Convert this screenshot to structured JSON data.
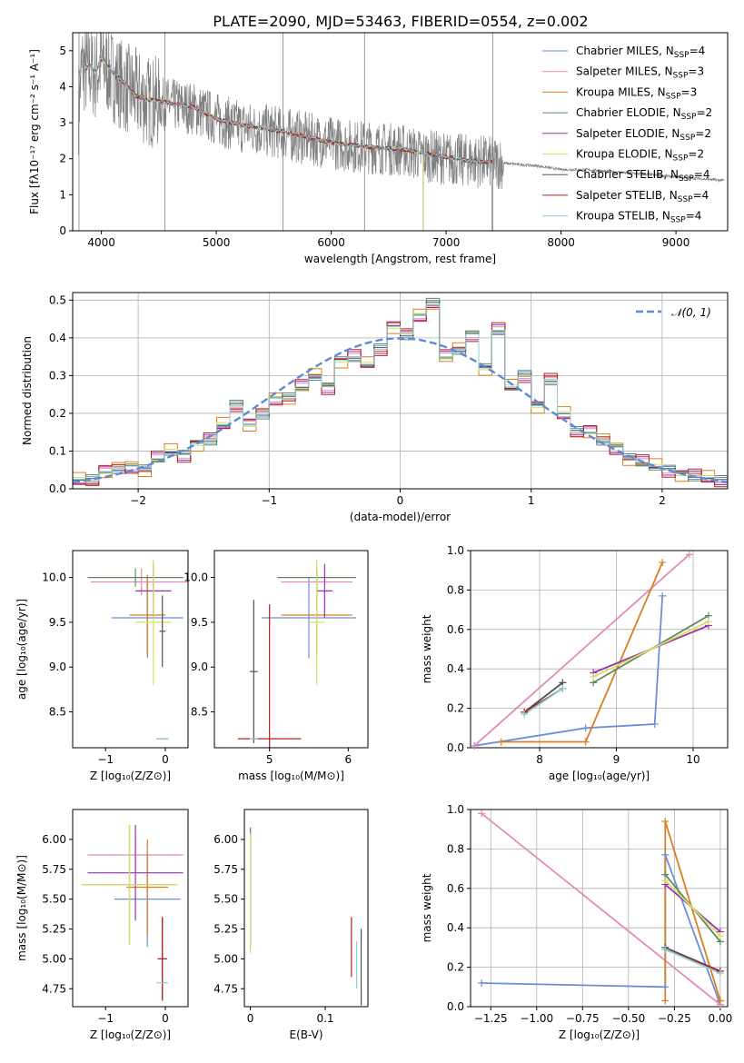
{
  "title": "PLATE=2090, MJD=53463, FIBERID=0554, z=0.002",
  "colors": {
    "gray": "#808080",
    "blue": "#6a8fd8",
    "pink": "#e58ab8",
    "orange": "#d9801e",
    "green": "#5e8a5e",
    "purple": "#9932b0",
    "yellow": "#d8e060",
    "dkgray": "#505050",
    "red": "#b52020",
    "cyan": "#8ccfd8",
    "normal": "#5b8bd4"
  },
  "models": [
    {
      "label": "Chabrier MILES, N",
      "sub": "SSP",
      "tail": "=4",
      "color": "#6a8fd8"
    },
    {
      "label": "Salpeter MILES, N",
      "sub": "SSP",
      "tail": "=3",
      "color": "#e58ab8"
    },
    {
      "label": "Kroupa MILES, N",
      "sub": "SSP",
      "tail": "=3",
      "color": "#d9801e"
    },
    {
      "label": "Chabrier ELODIE, N",
      "sub": "SSP",
      "tail": "=2",
      "color": "#5e8a5e"
    },
    {
      "label": "Salpeter ELODIE, N",
      "sub": "SSP",
      "tail": "=2",
      "color": "#9932b0"
    },
    {
      "label": "Kroupa ELODIE, N",
      "sub": "SSP",
      "tail": "=2",
      "color": "#d8e060"
    },
    {
      "label": "Chabrier STELIB, N",
      "sub": "SSP",
      "tail": "=4",
      "color": "#505050"
    },
    {
      "label": "Salpeter STELIB, N",
      "sub": "SSP",
      "tail": "=4",
      "color": "#b52020"
    },
    {
      "label": "Kroupa STELIB, N",
      "sub": "SSP",
      "tail": "=4",
      "color": "#8ccfd8"
    }
  ],
  "chart_data": [
    {
      "id": "spectrum",
      "type": "line",
      "xlabel": "wavelength [Angstrom, rest frame]",
      "ylabel": "Flux [fλ10⁻¹⁷ erg cm⁻² s⁻¹ A⁻¹]",
      "xlim": [
        3750,
        9450
      ],
      "ylim": [
        0,
        5.5
      ],
      "xticks": [
        4000,
        5000,
        6000,
        7000,
        8000,
        9000
      ],
      "yticks": [
        0,
        1,
        2,
        3,
        4,
        5
      ],
      "data_x": [
        3800,
        3830,
        3870,
        3900,
        3950,
        4000,
        4100,
        4200,
        4300,
        4400,
        4600,
        4800,
        5000,
        5200,
        5400,
        5600,
        5800,
        6000,
        6200,
        6400,
        6600,
        6800,
        7000,
        7200,
        7400,
        7600,
        7800,
        8000,
        8200,
        8400,
        8600,
        8800,
        9000,
        9200,
        9400
      ],
      "data_y": [
        3.4,
        4.6,
        4.4,
        4.5,
        4.3,
        4.7,
        4.3,
        4.0,
        3.8,
        3.6,
        3.5,
        3.4,
        3.1,
        2.9,
        2.8,
        2.7,
        2.55,
        2.45,
        2.35,
        2.3,
        2.25,
        2.1,
        2.0,
        1.95,
        1.9,
        1.85,
        1.8,
        1.7,
        1.7,
        1.65,
        1.6,
        1.55,
        1.5,
        1.45,
        1.4
      ],
      "model_x": [
        3800,
        3830,
        3870,
        3900,
        3950,
        4000,
        4100,
        4200,
        4300,
        4400,
        4600,
        4800,
        5000,
        5200,
        5400,
        5600,
        5800,
        6000,
        6200,
        6400,
        6600,
        6800,
        7000,
        7200,
        7400
      ],
      "model_y": [
        3.9,
        4.7,
        4.5,
        4.6,
        4.4,
        4.8,
        4.4,
        4.1,
        3.75,
        3.65,
        3.55,
        3.45,
        3.1,
        2.95,
        2.85,
        2.75,
        2.6,
        2.45,
        2.38,
        2.3,
        2.27,
        2.15,
        2.05,
        1.95,
        1.9
      ],
      "series_end_wavelengths": [
        7400,
        7400,
        7400,
        7400,
        6800,
        6800,
        7400,
        7400,
        7400
      ]
    },
    {
      "id": "residuals",
      "type": "histogram",
      "xlabel": "(data-model)/error",
      "ylabel": "Normed distribution",
      "xlim": [
        -2.5,
        2.5
      ],
      "ylim": [
        0,
        0.52
      ],
      "xticks": [
        -2,
        -1,
        0,
        1,
        2
      ],
      "yticks": [
        0.0,
        0.1,
        0.2,
        0.3,
        0.4,
        0.5
      ],
      "legend": "𝒩(0, 1)",
      "bin_edges": [
        -2.5,
        -2.4,
        -2.3,
        -2.2,
        -2.1,
        -2.0,
        -1.9,
        -1.8,
        -1.7,
        -1.6,
        -1.5,
        -1.4,
        -1.3,
        -1.2,
        -1.1,
        -1.0,
        -0.9,
        -0.8,
        -0.7,
        -0.6,
        -0.5,
        -0.4,
        -0.3,
        -0.2,
        -0.1,
        0.0,
        0.1,
        0.2,
        0.3,
        0.4,
        0.5,
        0.6,
        0.7,
        0.8,
        0.9,
        1.0,
        1.1,
        1.2,
        1.3,
        1.4,
        1.5,
        1.6,
        1.7,
        1.8,
        1.9,
        2.0,
        2.1,
        2.2,
        2.3,
        2.4,
        2.5
      ],
      "heights": [
        0.025,
        0.022,
        0.045,
        0.055,
        0.06,
        0.05,
        0.08,
        0.1,
        0.09,
        0.12,
        0.13,
        0.17,
        0.22,
        0.17,
        0.2,
        0.24,
        0.24,
        0.27,
        0.3,
        0.27,
        0.34,
        0.35,
        0.33,
        0.37,
        0.43,
        0.41,
        0.46,
        0.49,
        0.35,
        0.37,
        0.41,
        0.32,
        0.42,
        0.27,
        0.3,
        0.22,
        0.29,
        0.2,
        0.15,
        0.15,
        0.13,
        0.11,
        0.08,
        0.07,
        0.06,
        0.05,
        0.04,
        0.035,
        0.03,
        0.02
      ],
      "series_offsets": [
        0.01,
        -0.01,
        0.02,
        -0.015,
        0.015,
        -0.005,
        0.005,
        -0.02,
        0.0
      ],
      "normal_mu": 0,
      "normal_sigma": 1
    },
    {
      "id": "z_age",
      "type": "errorbar",
      "xlabel": "Z [log₁₀(Z/Z⊙)]",
      "ylabel": "age  [log₁₀(age/yr)]",
      "xlim": [
        -1.55,
        0.38
      ],
      "ylim": [
        8.1,
        10.3
      ],
      "xticks": [
        -1,
        0
      ],
      "yticks": [
        8.5,
        9.0,
        9.5,
        10.0
      ],
      "points": [
        {
          "series": 0,
          "x": -0.3,
          "y": 9.55,
          "xerr": 0.6,
          "yerr": 0.45
        },
        {
          "series": 1,
          "x": -0.4,
          "y": 9.95,
          "xerr": 0.85,
          "yerr": 0.15
        },
        {
          "series": 2,
          "x": -0.3,
          "y": 9.58,
          "xerr": 0.3,
          "yerr": 0.45
        },
        {
          "series": 3,
          "x": -0.5,
          "y": 10.0,
          "xerr": 0.8,
          "yerr": 0.1
        },
        {
          "series": 4,
          "x": -0.2,
          "y": 9.85,
          "xerr": 0.3,
          "yerr": 0.3
        },
        {
          "series": 5,
          "x": -0.2,
          "y": 9.5,
          "xerr": 0.3,
          "yerr": 0.7
        },
        {
          "series": 6,
          "x": -0.05,
          "y": 9.4,
          "xerr": 0.05,
          "yerr": 0.4
        },
        {
          "series": 7,
          "x": -0.05,
          "y": 8.2,
          "xerr": 0.1,
          "yerr": 0.0
        },
        {
          "series": 8,
          "x": -0.05,
          "y": 8.2,
          "xerr": 0.1,
          "yerr": 0.0
        }
      ]
    },
    {
      "id": "mass_age",
      "type": "errorbar",
      "xlabel": "mass [log₁₀(M/M⊙)]",
      "ylabel": "",
      "xlim": [
        4.3,
        6.25
      ],
      "ylim": [
        8.1,
        10.3
      ],
      "xticks": [
        4,
        5,
        6
      ],
      "yticks": [
        8.5,
        9.0,
        9.5,
        10.0
      ],
      "points": [
        {
          "series": 0,
          "x": 5.5,
          "y": 9.55,
          "xerr": 0.6,
          "yerr": 0.45
        },
        {
          "series": 1,
          "x": 5.6,
          "y": 9.95,
          "xerr": 0.45,
          "yerr": 0.15
        },
        {
          "series": 2,
          "x": 5.6,
          "y": 9.58,
          "xerr": 0.45,
          "yerr": 0.45
        },
        {
          "series": 3,
          "x": 5.6,
          "y": 10.0,
          "xerr": 0.5,
          "yerr": 0.1
        },
        {
          "series": 4,
          "x": 5.7,
          "y": 9.85,
          "xerr": 0.1,
          "yerr": 0.3
        },
        {
          "series": 5,
          "x": 5.6,
          "y": 9.5,
          "xerr": 0.1,
          "yerr": 0.7
        },
        {
          "series": 6,
          "x": 4.8,
          "y": 8.95,
          "xerr": 0.05,
          "yerr": 0.8
        },
        {
          "series": 7,
          "x": 5.0,
          "y": 8.2,
          "xerr": 0.4,
          "yerr": 1.5
        },
        {
          "series": 8,
          "x": 4.8,
          "y": 8.2,
          "xerr": 0.05,
          "yerr": 0.0
        }
      ]
    },
    {
      "id": "age_weight",
      "type": "line",
      "xlabel": "age  [log₁₀(age/yr)]",
      "ylabel": "mass weight",
      "xlim": [
        7.1,
        10.45
      ],
      "ylim": [
        0,
        1.0
      ],
      "xticks": [
        8,
        9,
        10
      ],
      "yticks": [
        0.0,
        0.2,
        0.4,
        0.6,
        0.8,
        1.0
      ],
      "series": [
        {
          "series": 0,
          "x": [
            7.15,
            8.6,
            9.5,
            9.6
          ],
          "y": [
            0.01,
            0.1,
            0.12,
            0.77
          ]
        },
        {
          "series": 1,
          "x": [
            7.15,
            9.95
          ],
          "y": [
            0.01,
            0.98
          ]
        },
        {
          "series": 2,
          "x": [
            7.5,
            8.6,
            9.6
          ],
          "y": [
            0.03,
            0.03,
            0.94
          ]
        },
        {
          "series": 3,
          "x": [
            8.7,
            10.2
          ],
          "y": [
            0.33,
            0.67
          ]
        },
        {
          "series": 4,
          "x": [
            8.7,
            10.2
          ],
          "y": [
            0.38,
            0.62
          ]
        },
        {
          "series": 5,
          "x": [
            8.7,
            10.2
          ],
          "y": [
            0.36,
            0.64
          ]
        },
        {
          "series": 6,
          "x": [
            7.8,
            8.3
          ],
          "y": [
            0.18,
            0.33
          ]
        },
        {
          "series": 7,
          "x": [
            7.8,
            8.3
          ],
          "y": [
            0.18,
            0.3
          ]
        },
        {
          "series": 8,
          "x": [
            7.8,
            8.3
          ],
          "y": [
            0.17,
            0.3
          ]
        }
      ]
    },
    {
      "id": "z_mass",
      "type": "errorbar",
      "xlabel": "Z [log₁₀(Z/Z⊙)]",
      "ylabel": "mass [log₁₀(M/M⊙)]",
      "xlim": [
        -1.55,
        0.38
      ],
      "ylim": [
        4.6,
        6.25
      ],
      "xticks": [
        -1,
        0
      ],
      "yticks": [
        4.75,
        5.0,
        5.25,
        5.5,
        5.75,
        6.0
      ],
      "points": [
        {
          "series": 0,
          "x": -0.3,
          "y": 5.5,
          "xerr": 0.55,
          "yerr": 0.4
        },
        {
          "series": 1,
          "x": -0.5,
          "y": 5.87,
          "xerr": 0.8,
          "yerr": 0.15
        },
        {
          "series": 2,
          "x": -0.3,
          "y": 5.6,
          "xerr": 0.35,
          "yerr": 0.4
        },
        {
          "series": 3,
          "x": -0.6,
          "y": 5.62,
          "xerr": 0.8,
          "yerr": 0.5
        },
        {
          "series": 4,
          "x": -0.5,
          "y": 5.72,
          "xerr": 0.8,
          "yerr": 0.4
        },
        {
          "series": 5,
          "x": -0.6,
          "y": 5.62,
          "xerr": 0.8,
          "yerr": 0.5
        },
        {
          "series": 6,
          "x": -0.05,
          "y": 5.0,
          "xerr": 0.05,
          "yerr": 0.35
        },
        {
          "series": 7,
          "x": -0.05,
          "y": 5.0,
          "xerr": 0.08,
          "yerr": 0.35
        },
        {
          "series": 8,
          "x": -0.05,
          "y": 4.8,
          "xerr": 0.1,
          "yerr": 0.0
        }
      ]
    },
    {
      "id": "ebv_mass",
      "type": "errorbar",
      "xlabel": "E(B-V)",
      "ylabel": "",
      "xlim": [
        -0.008,
        0.157
      ],
      "ylim": [
        4.6,
        6.25
      ],
      "xticks": [
        0.0,
        0.1
      ],
      "yticks": [
        4.75,
        5.0,
        5.25,
        5.5,
        5.75,
        6.0
      ],
      "points": [
        {
          "series": 0,
          "x": 0.0,
          "y": 5.6,
          "xerr": 0,
          "yerr": 0.5
        },
        {
          "series": 3,
          "x": 0.0,
          "y": 5.6,
          "xerr": 0,
          "yerr": 0.5
        },
        {
          "series": 5,
          "x": 0.0,
          "y": 5.55,
          "xerr": 0,
          "yerr": 0.5
        },
        {
          "series": 6,
          "x": 0.148,
          "y": 4.93,
          "xerr": 0,
          "yerr": 0.32
        },
        {
          "series": 7,
          "x": 0.135,
          "y": 5.1,
          "xerr": 0,
          "yerr": 0.25
        },
        {
          "series": 8,
          "x": 0.142,
          "y": 4.95,
          "xerr": 0,
          "yerr": 0.2
        }
      ]
    },
    {
      "id": "z_weight",
      "type": "line",
      "xlabel": "Z [log₁₀(Z/Z⊙)]",
      "ylabel": "mass weight",
      "xlim": [
        -1.36,
        0.04
      ],
      "ylim": [
        0,
        1.0
      ],
      "xticks": [
        -1.25,
        -1.0,
        -0.75,
        -0.5,
        -0.25,
        0.0
      ],
      "xtick_labels": [
        "−1.25",
        "−1.00",
        "−0.75",
        "−0.50",
        "−0.25",
        "0.00"
      ],
      "yticks": [
        0.0,
        0.2,
        0.4,
        0.6,
        0.8,
        1.0
      ],
      "series": [
        {
          "series": 0,
          "x": [
            -1.3,
            -0.3,
            -0.3,
            0.0
          ],
          "y": [
            0.12,
            0.1,
            0.77,
            0.01
          ]
        },
        {
          "series": 1,
          "x": [
            -1.3,
            0.0
          ],
          "y": [
            0.98,
            0.01
          ]
        },
        {
          "series": 2,
          "x": [
            -0.3,
            -0.3,
            0.0,
            0.0
          ],
          "y": [
            0.03,
            0.94,
            0.03,
            0.03
          ]
        },
        {
          "series": 3,
          "x": [
            -0.3,
            0.0
          ],
          "y": [
            0.67,
            0.33
          ]
        },
        {
          "series": 4,
          "x": [
            -0.3,
            0.0
          ],
          "y": [
            0.62,
            0.38
          ]
        },
        {
          "series": 5,
          "x": [
            -0.3,
            0.0
          ],
          "y": [
            0.64,
            0.36
          ]
        },
        {
          "series": 6,
          "x": [
            -0.3,
            0.0
          ],
          "y": [
            0.3,
            0.18
          ]
        },
        {
          "series": 7,
          "x": [
            -0.3,
            0.0
          ],
          "y": [
            0.29,
            0.18
          ]
        },
        {
          "series": 8,
          "x": [
            -0.3,
            0.0
          ],
          "y": [
            0.29,
            0.17
          ]
        }
      ]
    }
  ]
}
